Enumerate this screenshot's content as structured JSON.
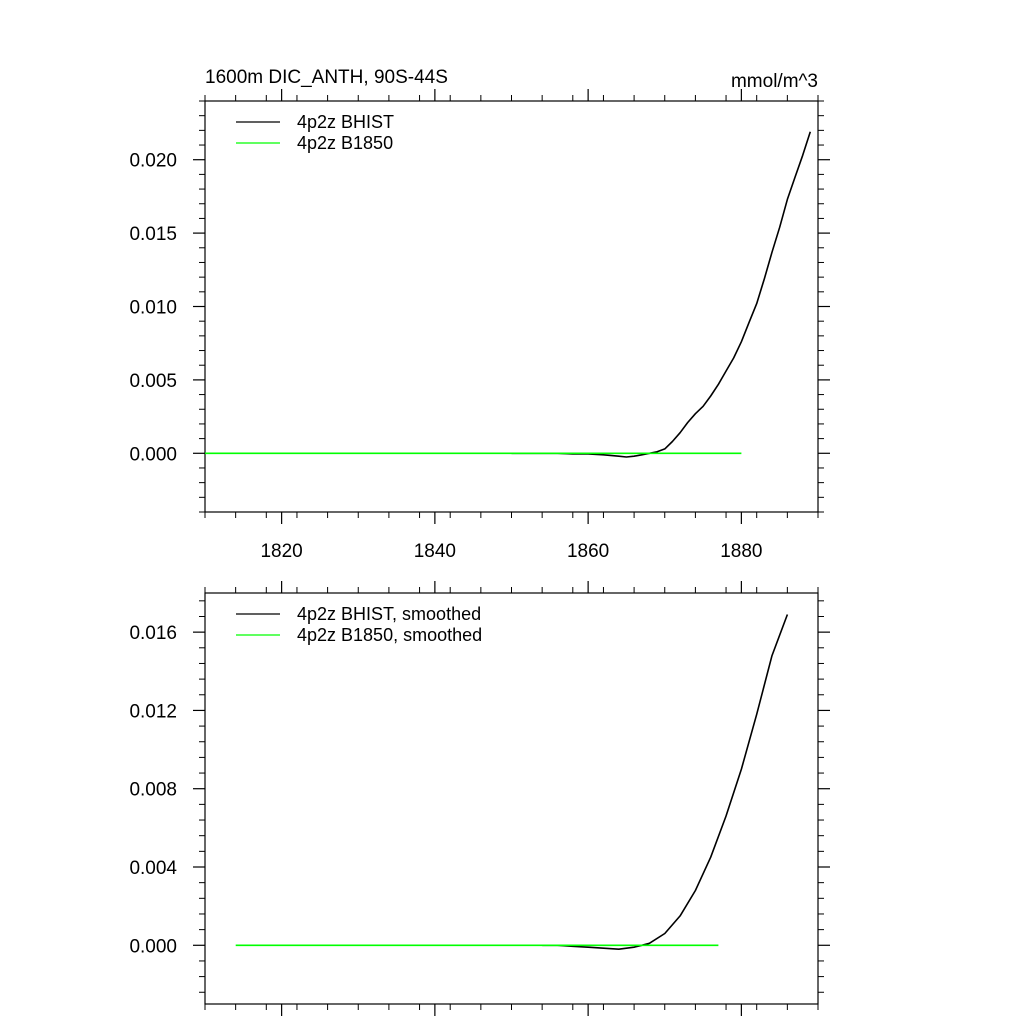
{
  "chart_data": [
    {
      "type": "line",
      "title": "1600m DIC_ANTH, 90S-44S",
      "units": "mmol/m^3",
      "xlabel": "",
      "ylabel": "",
      "xlim": [
        1810,
        1890
      ],
      "ylim": [
        -0.004,
        0.024
      ],
      "x_ticks": [
        1820,
        1840,
        1860,
        1880
      ],
      "x_tick_labels": [
        "1820",
        "1840",
        "1860",
        "1880"
      ],
      "y_ticks": [
        0.0,
        0.005,
        0.01,
        0.015,
        0.02
      ],
      "y_tick_labels": [
        "0.000",
        "0.005",
        "0.010",
        "0.015",
        "0.020"
      ],
      "grid": false,
      "legend_position": "top-left",
      "series": [
        {
          "name": "4p2z BHIST",
          "color": "#000000",
          "x": [
            1850,
            1852,
            1854,
            1856,
            1858,
            1860,
            1862,
            1864,
            1865,
            1866,
            1867,
            1868,
            1869,
            1870,
            1871,
            1872,
            1873,
            1874,
            1875,
            1876,
            1877,
            1878,
            1879,
            1880,
            1881,
            1882,
            1883,
            1884,
            1885,
            1886,
            1887,
            1888,
            1889
          ],
          "y": [
            0.0,
            0.0,
            0.0,
            0.0,
            -5e-05,
            -5e-05,
            -0.0001,
            -0.0002,
            -0.00025,
            -0.0002,
            -0.0001,
            0.0,
            0.0001,
            0.0003,
            0.0008,
            0.0014,
            0.0021,
            0.0027,
            0.0032,
            0.0039,
            0.0047,
            0.0056,
            0.0065,
            0.0076,
            0.0089,
            0.0102,
            0.0119,
            0.0137,
            0.0154,
            0.0173,
            0.0188,
            0.0203,
            0.0219
          ]
        },
        {
          "name": "4p2z B1850",
          "color": "#00ff00",
          "x": [
            1810,
            1880
          ],
          "y": [
            0.0,
            0.0
          ]
        }
      ]
    },
    {
      "type": "line",
      "title": "",
      "xlabel": "",
      "ylabel": "",
      "xlim": [
        1810,
        1890
      ],
      "ylim": [
        -0.003,
        0.018
      ],
      "x_ticks": [
        1820,
        1840,
        1860,
        1880
      ],
      "x_tick_labels": [],
      "y_ticks": [
        0.0,
        0.004,
        0.008,
        0.012,
        0.016
      ],
      "y_tick_labels": [
        "0.000",
        "0.004",
        "0.008",
        "0.012",
        "0.016"
      ],
      "grid": false,
      "legend_position": "top-left",
      "series": [
        {
          "name": "4p2z BHIST, smoothed",
          "color": "#000000",
          "x": [
            1854,
            1856,
            1858,
            1860,
            1862,
            1864,
            1866,
            1867,
            1868,
            1870,
            1872,
            1874,
            1876,
            1878,
            1880,
            1882,
            1884,
            1886
          ],
          "y": [
            0.0,
            0.0,
            -5e-05,
            -0.0001,
            -0.00015,
            -0.0002,
            -0.0001,
            0.0,
            0.0001,
            0.0006,
            0.0015,
            0.0028,
            0.0045,
            0.0066,
            0.009,
            0.0118,
            0.0148,
            0.0169
          ]
        },
        {
          "name": "4p2z B1850, smoothed",
          "color": "#00ff00",
          "x": [
            1814,
            1877
          ],
          "y": [
            0.0,
            0.0
          ]
        }
      ]
    }
  ]
}
